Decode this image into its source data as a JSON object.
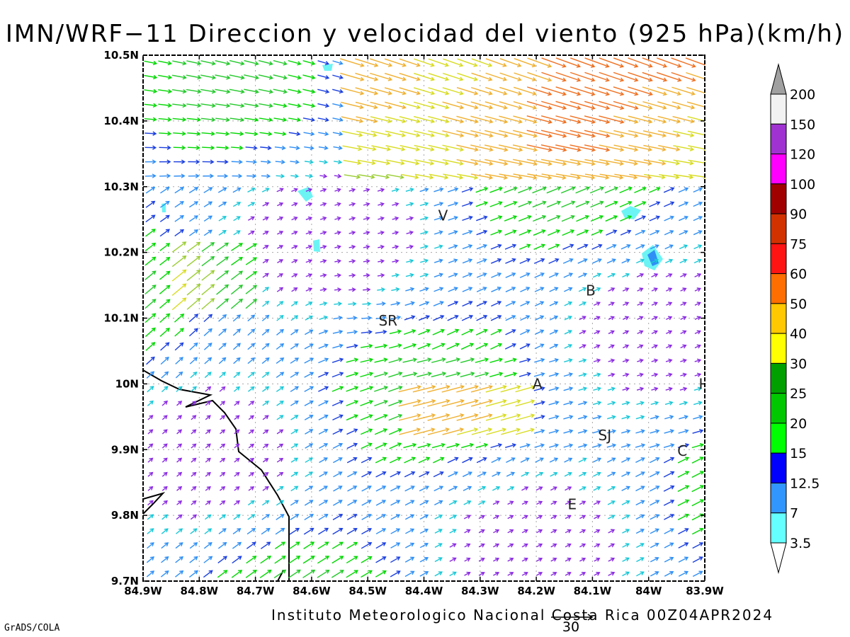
{
  "title": "IMN/WRF−11 Direccion y velocidad del viento (925 hPa)(km/h)",
  "footer_credit": "Instituto Meteorologico Nacional Costa Rica 00Z04APR2024",
  "grads_tag": "GrADS/COLA",
  "reference_vector_label": "30",
  "x_ticks": [
    "84.9W",
    "84.8W",
    "84.7W",
    "84.6W",
    "84.5W",
    "84.4W",
    "84.3W",
    "84.2W",
    "84.1W",
    "84W",
    "83.9W"
  ],
  "y_ticks": [
    "10.5N",
    "10.4N",
    "10.3N",
    "10.2N",
    "10.1N",
    "10N",
    "9.9N",
    "9.8N",
    "9.7N"
  ],
  "place_labels": [
    {
      "text": "V",
      "lon": -84.366,
      "lat": 10.256
    },
    {
      "text": "B",
      "lon": -84.103,
      "lat": 10.142
    },
    {
      "text": "SR",
      "lon": -84.464,
      "lat": 10.096
    },
    {
      "text": "A",
      "lon": -84.198,
      "lat": 10.0
    },
    {
      "text": "I",
      "lon": -83.907,
      "lat": 10.0
    },
    {
      "text": "SJ",
      "lon": -84.078,
      "lat": 9.922
    },
    {
      "text": "C",
      "lon": -83.94,
      "lat": 9.898
    },
    {
      "text": "E",
      "lon": -84.136,
      "lat": 9.817
    }
  ],
  "colorbar": {
    "labels": [
      "200",
      "150",
      "120",
      "100",
      "90",
      "75",
      "60",
      "50",
      "40",
      "30",
      "25",
      "20",
      "15",
      "12.5",
      "7",
      "3.5"
    ],
    "colors": [
      "#a0a0a0",
      "#f2f2f2",
      "#a032d2",
      "#ff00ff",
      "#a00000",
      "#d23200",
      "#ff1414",
      "#ff6e00",
      "#ffc800",
      "#ffff00",
      "#00a000",
      "#00c800",
      "#00ff00",
      "#0000ff",
      "#3296ff",
      "#64ffff",
      "#ffffff"
    ]
  },
  "map": {
    "lon_range": [
      -84.9,
      -83.9
    ],
    "lat_range": [
      9.7,
      10.5
    ],
    "speed_colors": [
      {
        "min": 0,
        "color": "#8a2be2"
      },
      {
        "min": 3.5,
        "color": "#19c8d8"
      },
      {
        "min": 7,
        "color": "#2f8ff5"
      },
      {
        "min": 12.5,
        "color": "#1a3fe0"
      },
      {
        "min": 15,
        "color": "#00d800"
      },
      {
        "min": 20,
        "color": "#22c92a"
      },
      {
        "min": 25,
        "color": "#9acd32"
      },
      {
        "min": 30,
        "color": "#d8dc20"
      },
      {
        "min": 40,
        "color": "#f0b030"
      },
      {
        "min": 50,
        "color": "#f07020"
      },
      {
        "min": 60,
        "color": "#ee2060"
      }
    ]
  }
}
